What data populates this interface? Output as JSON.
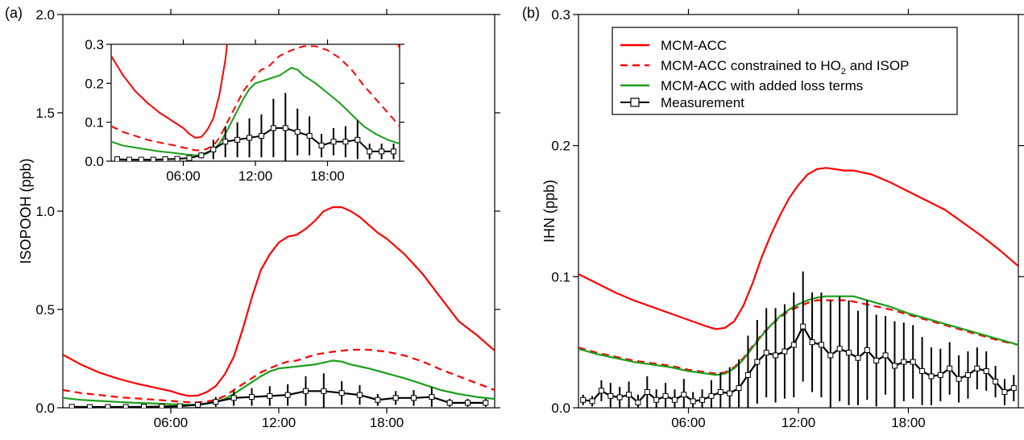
{
  "chart_data": [
    {
      "type": "line",
      "panel_label": "(a)",
      "ylabel": "ISOPOOH (ppb)",
      "xlabel": "",
      "xlim": [
        0,
        24
      ],
      "ylim": [
        0,
        2.0
      ],
      "x_ticks": [
        6,
        12,
        18
      ],
      "x_tick_labels": [
        "06:00",
        "12:00",
        "18:00"
      ],
      "y_ticks": [
        0,
        0.5,
        1.0,
        1.5,
        2.0
      ],
      "y_tick_labels": [
        "0.0",
        "0.5",
        "1.0",
        "1.5",
        "2.0"
      ],
      "grid": false,
      "series": [
        {
          "name": "MCM-ACC",
          "color": "#ff0000",
          "style": "solid",
          "x": [
            0,
            1,
            2,
            3,
            4,
            5,
            6,
            6.5,
            7,
            7.5,
            8,
            8.5,
            9,
            9.5,
            10,
            10.5,
            11,
            11.5,
            12,
            12.5,
            13,
            13.5,
            14,
            14.5,
            15,
            15.5,
            16,
            16.5,
            17,
            17.5,
            18,
            19,
            20,
            21,
            22,
            23,
            24
          ],
          "y": [
            0.27,
            0.22,
            0.18,
            0.15,
            0.125,
            0.105,
            0.085,
            0.07,
            0.06,
            0.062,
            0.08,
            0.11,
            0.17,
            0.26,
            0.4,
            0.56,
            0.7,
            0.78,
            0.84,
            0.87,
            0.88,
            0.91,
            0.95,
            1.0,
            1.02,
            1.02,
            1.0,
            0.97,
            0.93,
            0.89,
            0.86,
            0.78,
            0.68,
            0.56,
            0.44,
            0.37,
            0.29
          ]
        },
        {
          "name": "MCM-ACC constrained to HO2 and ISOP",
          "color": "#ff0000",
          "style": "dashed",
          "x": [
            0,
            1,
            2,
            3,
            4,
            5,
            6,
            7,
            7.5,
            8,
            8.5,
            9,
            9.5,
            10,
            10.5,
            11,
            11.5,
            12,
            12.5,
            13,
            13.5,
            14,
            15,
            16,
            17,
            18,
            19,
            20,
            21,
            22,
            23,
            24
          ],
          "y": [
            0.09,
            0.075,
            0.065,
            0.055,
            0.048,
            0.042,
            0.035,
            0.028,
            0.028,
            0.032,
            0.04,
            0.06,
            0.09,
            0.12,
            0.15,
            0.18,
            0.2,
            0.22,
            0.235,
            0.24,
            0.255,
            0.27,
            0.285,
            0.295,
            0.295,
            0.285,
            0.265,
            0.235,
            0.195,
            0.16,
            0.125,
            0.09
          ]
        },
        {
          "name": "MCM-ACC with added loss terms",
          "color": "#1a9e1a",
          "style": "solid",
          "x": [
            0,
            1,
            2,
            3,
            4,
            5,
            6,
            7,
            7.5,
            8,
            8.5,
            9,
            9.5,
            10,
            10.5,
            11,
            11.5,
            12,
            12.5,
            13,
            13.5,
            14,
            14.5,
            15,
            15.5,
            16,
            17,
            18,
            19,
            20,
            21,
            22,
            23,
            24
          ],
          "y": [
            0.05,
            0.04,
            0.035,
            0.03,
            0.025,
            0.022,
            0.018,
            0.015,
            0.016,
            0.02,
            0.03,
            0.045,
            0.07,
            0.1,
            0.13,
            0.16,
            0.185,
            0.2,
            0.205,
            0.21,
            0.215,
            0.22,
            0.23,
            0.24,
            0.235,
            0.22,
            0.2,
            0.175,
            0.15,
            0.12,
            0.09,
            0.07,
            0.055,
            0.045
          ]
        },
        {
          "name": "Measurement",
          "color": "#000000",
          "style": "markers",
          "x": [
            0.5,
            1.5,
            2.5,
            3.5,
            4.5,
            5.5,
            6.5,
            7.5,
            8.5,
            9.5,
            10.5,
            11.5,
            12.5,
            13.5,
            14.5,
            15.5,
            16.5,
            17.5,
            18.5,
            19.5,
            20.5,
            21.5,
            22.5,
            23.5
          ],
          "y": [
            0.005,
            0.004,
            0.004,
            0.004,
            0.005,
            0.006,
            0.008,
            0.015,
            0.03,
            0.05,
            0.055,
            0.06,
            0.065,
            0.085,
            0.085,
            0.075,
            0.065,
            0.04,
            0.05,
            0.05,
            0.055,
            0.025,
            0.025,
            0.025
          ],
          "err": [
            0.003,
            0.003,
            0.003,
            0.003,
            0.003,
            0.003,
            0.004,
            0.008,
            0.025,
            0.04,
            0.045,
            0.05,
            0.055,
            0.075,
            0.09,
            0.06,
            0.05,
            0.03,
            0.035,
            0.04,
            0.05,
            0.02,
            0.02,
            0.02
          ]
        }
      ],
      "inset": {
        "xlim": [
          0,
          24
        ],
        "ylim": [
          0,
          0.3
        ],
        "x_ticks": [
          6,
          12,
          18
        ],
        "x_tick_labels": [
          "06:00",
          "12:00",
          "18:00"
        ],
        "y_ticks": [
          0,
          0.1,
          0.2,
          0.3
        ],
        "y_tick_labels": [
          "0.0",
          "0.1",
          "0.2",
          "0.3"
        ]
      }
    },
    {
      "type": "line",
      "panel_label": "(b)",
      "ylabel": "IHN (ppb)",
      "xlabel": "",
      "xlim": [
        0,
        24
      ],
      "ylim": [
        0,
        0.3
      ],
      "x_ticks": [
        6,
        12,
        18
      ],
      "x_tick_labels": [
        "06:00",
        "12:00",
        "18:00"
      ],
      "y_ticks": [
        0,
        0.1,
        0.2,
        0.3
      ],
      "y_tick_labels": [
        "0.0",
        "0.1",
        "0.2",
        "0.3"
      ],
      "grid": false,
      "legend": {
        "position": "top-right",
        "entries": [
          {
            "label": "MCM-ACC",
            "color": "#ff0000",
            "style": "solid"
          },
          {
            "label_main": "MCM-ACC constrained to HO",
            "label_sub": "2",
            "label_tail": " and ISOP",
            "color": "#ff0000",
            "style": "dashed"
          },
          {
            "label": "MCM-ACC with added loss terms",
            "color": "#1a9e1a",
            "style": "solid"
          },
          {
            "label": "Measurement",
            "color": "#000000",
            "style": "markers"
          }
        ]
      },
      "series": [
        {
          "name": "MCM-ACC",
          "color": "#ff0000",
          "style": "solid",
          "x": [
            0,
            1,
            2,
            3,
            4,
            5,
            6,
            7,
            7.5,
            8,
            8.5,
            9,
            9.5,
            10,
            10.5,
            11,
            11.5,
            12,
            12.5,
            13,
            13.5,
            14,
            14.5,
            15,
            16,
            17,
            18,
            19,
            20,
            21,
            22,
            23,
            24
          ],
          "y": [
            0.102,
            0.095,
            0.088,
            0.082,
            0.077,
            0.072,
            0.067,
            0.062,
            0.06,
            0.061,
            0.066,
            0.078,
            0.095,
            0.115,
            0.132,
            0.147,
            0.16,
            0.17,
            0.178,
            0.182,
            0.183,
            0.182,
            0.181,
            0.181,
            0.178,
            0.172,
            0.165,
            0.158,
            0.151,
            0.141,
            0.131,
            0.12,
            0.108
          ]
        },
        {
          "name": "MCM-ACC constrained to HO2 and ISOP",
          "color": "#ff0000",
          "style": "dashed",
          "x": [
            0,
            1,
            2,
            3,
            4,
            5,
            6,
            7,
            7.5,
            8,
            8.5,
            9,
            9.5,
            10,
            10.5,
            11,
            11.5,
            12,
            12.5,
            13,
            13.5,
            14,
            14.5,
            15,
            16,
            17,
            18,
            19,
            20,
            21,
            22,
            23,
            24
          ],
          "y": [
            0.046,
            0.042,
            0.039,
            0.036,
            0.034,
            0.032,
            0.029,
            0.027,
            0.026,
            0.027,
            0.031,
            0.038,
            0.047,
            0.056,
            0.063,
            0.069,
            0.074,
            0.077,
            0.08,
            0.082,
            0.082,
            0.082,
            0.082,
            0.081,
            0.078,
            0.075,
            0.071,
            0.067,
            0.063,
            0.059,
            0.055,
            0.051,
            0.048
          ]
        },
        {
          "name": "MCM-ACC with added loss terms",
          "color": "#1a9e1a",
          "style": "solid",
          "x": [
            0,
            1,
            2,
            3,
            4,
            5,
            6,
            7,
            7.5,
            8,
            8.5,
            9,
            9.5,
            10,
            10.5,
            11,
            11.5,
            12,
            12.5,
            13,
            13.5,
            14,
            14.5,
            15,
            16,
            17,
            18,
            19,
            20,
            21,
            22,
            23,
            24
          ],
          "y": [
            0.045,
            0.041,
            0.038,
            0.035,
            0.033,
            0.031,
            0.028,
            0.026,
            0.025,
            0.026,
            0.03,
            0.037,
            0.046,
            0.055,
            0.063,
            0.07,
            0.075,
            0.079,
            0.082,
            0.084,
            0.085,
            0.085,
            0.085,
            0.085,
            0.081,
            0.077,
            0.072,
            0.068,
            0.064,
            0.06,
            0.056,
            0.052,
            0.048
          ]
        },
        {
          "name": "Measurement",
          "color": "#000000",
          "style": "markers",
          "x": [
            0.25,
            0.75,
            1.25,
            1.75,
            2.25,
            2.75,
            3.25,
            3.75,
            4.25,
            4.75,
            5.25,
            5.75,
            6.25,
            6.75,
            7.25,
            7.75,
            8.25,
            8.75,
            9.25,
            9.75,
            10.25,
            10.75,
            11.25,
            11.75,
            12.25,
            12.75,
            13.25,
            13.75,
            14.25,
            14.75,
            15.25,
            15.75,
            16.25,
            16.75,
            17.25,
            17.75,
            18.25,
            18.75,
            19.25,
            19.75,
            20.25,
            20.75,
            21.25,
            21.75,
            22.25,
            22.75,
            23.25,
            23.75
          ],
          "y": [
            0.006,
            0.005,
            0.013,
            0.009,
            0.008,
            0.01,
            0.004,
            0.012,
            0.006,
            0.009,
            0.006,
            0.01,
            0.005,
            0.006,
            0.009,
            0.012,
            0.011,
            0.015,
            0.025,
            0.035,
            0.042,
            0.04,
            0.043,
            0.048,
            0.062,
            0.05,
            0.048,
            0.04,
            0.045,
            0.042,
            0.038,
            0.044,
            0.036,
            0.04,
            0.032,
            0.035,
            0.035,
            0.028,
            0.024,
            0.025,
            0.03,
            0.022,
            0.025,
            0.03,
            0.028,
            0.02,
            0.012,
            0.015
          ],
          "err": [
            0.004,
            0.004,
            0.008,
            0.01,
            0.008,
            0.01,
            0.006,
            0.012,
            0.008,
            0.01,
            0.008,
            0.012,
            0.007,
            0.008,
            0.012,
            0.015,
            0.02,
            0.022,
            0.03,
            0.032,
            0.034,
            0.036,
            0.036,
            0.04,
            0.042,
            0.038,
            0.04,
            0.042,
            0.04,
            0.04,
            0.036,
            0.038,
            0.035,
            0.03,
            0.034,
            0.03,
            0.028,
            0.026,
            0.022,
            0.02,
            0.02,
            0.018,
            0.018,
            0.016,
            0.015,
            0.012,
            0.01,
            0.01
          ]
        }
      ]
    }
  ]
}
